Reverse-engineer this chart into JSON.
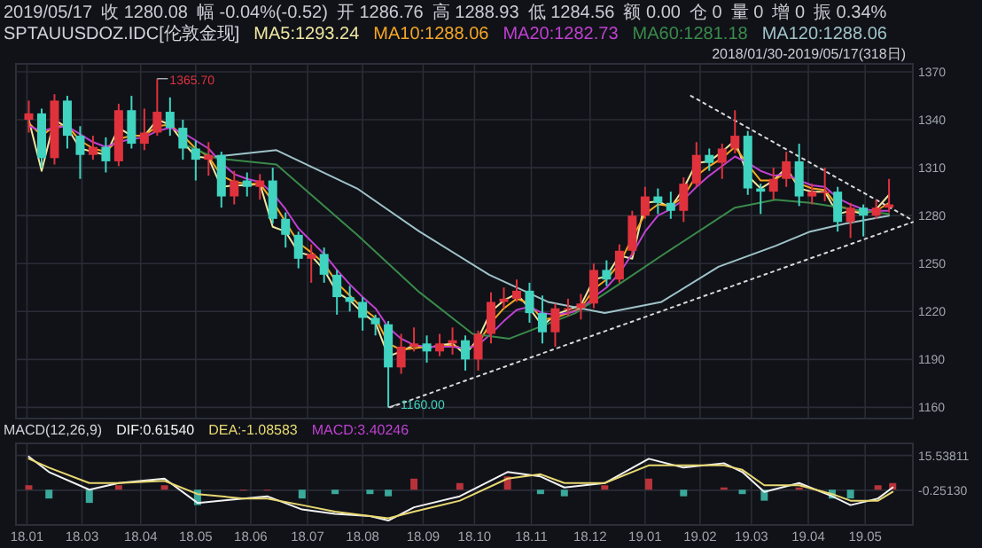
{
  "chart_data": [
    {
      "type": "candlestick",
      "title": "SPTAUUSDOZ.IDC[伦敦金现]",
      "subtitle": "2018/01/30-2019/05/17(318日)",
      "annotations": [
        "2019/05/17",
        "收 1280.08",
        "幅 -0.04%(-0.52)",
        "开 1286.76",
        "高 1288.93",
        "低 1284.56",
        "额 0.00",
        "仓 0",
        "量 0",
        "增 0",
        "振 0.34%",
        {
          "text": "1365.70",
          "x": "2018-04-11",
          "y": 1365.7
        },
        {
          "text": "1160.00",
          "x": "2018-08-15",
          "y": 1160
        }
      ],
      "x": [
        "2018-01-31",
        "2018-02-07",
        "2018-02-14",
        "2018-02-21",
        "2018-02-28",
        "2018-03-07",
        "2018-03-14",
        "2018-03-21",
        "2018-03-28",
        "2018-04-04",
        "2018-04-11",
        "2018-04-18",
        "2018-04-25",
        "2018-05-02",
        "2018-05-09",
        "2018-05-16",
        "2018-05-23",
        "2018-05-30",
        "2018-06-06",
        "2018-06-13",
        "2018-06-20",
        "2018-06-27",
        "2018-07-04",
        "2018-07-11",
        "2018-07-18",
        "2018-07-25",
        "2018-08-01",
        "2018-08-08",
        "2018-08-15",
        "2018-08-22",
        "2018-08-29",
        "2018-09-05",
        "2018-09-12",
        "2018-09-19",
        "2018-09-26",
        "2018-10-03",
        "2018-10-10",
        "2018-10-17",
        "2018-10-24",
        "2018-10-31",
        "2018-11-07",
        "2018-11-14",
        "2018-11-21",
        "2018-11-28",
        "2018-12-05",
        "2018-12-12",
        "2018-12-19",
        "2018-12-26",
        "2019-01-02",
        "2019-01-09",
        "2019-01-16",
        "2019-01-23",
        "2019-01-30",
        "2019-02-06",
        "2019-02-13",
        "2019-02-20",
        "2019-02-27",
        "2019-03-06",
        "2019-03-13",
        "2019-03-20",
        "2019-03-27",
        "2019-04-03",
        "2019-04-10",
        "2019-04-17",
        "2019-04-24",
        "2019-05-01",
        "2019-05-08",
        "2019-05-15"
      ],
      "ohlc": [
        [
          1340,
          1352,
          1332,
          1344
        ],
        [
          1344,
          1347,
          1310,
          1316
        ],
        [
          1316,
          1356,
          1312,
          1352
        ],
        [
          1352,
          1355,
          1322,
          1330
        ],
        [
          1330,
          1336,
          1303,
          1318
        ],
        [
          1318,
          1330,
          1315,
          1323
        ],
        [
          1323,
          1329,
          1307,
          1314
        ],
        [
          1314,
          1350,
          1311,
          1346
        ],
        [
          1346,
          1355,
          1322,
          1325
        ],
        [
          1325,
          1347,
          1321,
          1332
        ],
        [
          1332,
          1365.7,
          1330,
          1345
        ],
        [
          1345,
          1354,
          1330,
          1335
        ],
        [
          1335,
          1340,
          1315,
          1322
        ],
        [
          1322,
          1327,
          1302,
          1315
        ],
        [
          1315,
          1326,
          1305,
          1318
        ],
        [
          1318,
          1320,
          1285,
          1292
        ],
        [
          1292,
          1308,
          1287,
          1302
        ],
        [
          1302,
          1307,
          1292,
          1298
        ],
        [
          1298,
          1306,
          1290,
          1302
        ],
        [
          1302,
          1310,
          1275,
          1278
        ],
        [
          1278,
          1282,
          1260,
          1268
        ],
        [
          1268,
          1270,
          1247,
          1253
        ],
        [
          1253,
          1262,
          1238,
          1256
        ],
        [
          1256,
          1260,
          1238,
          1243
        ],
        [
          1243,
          1246,
          1218,
          1229
        ],
        [
          1229,
          1236,
          1220,
          1226
        ],
        [
          1226,
          1229,
          1208,
          1216
        ],
        [
          1216,
          1218,
          1205,
          1212
        ],
        [
          1212,
          1214,
          1160,
          1185
        ],
        [
          1185,
          1206,
          1181,
          1198
        ],
        [
          1198,
          1210,
          1195,
          1200
        ],
        [
          1200,
          1205,
          1188,
          1195
        ],
        [
          1195,
          1206,
          1192,
          1200
        ],
        [
          1200,
          1210,
          1193,
          1202
        ],
        [
          1202,
          1205,
          1183,
          1190
        ],
        [
          1190,
          1208,
          1183,
          1206
        ],
        [
          1206,
          1232,
          1200,
          1226
        ],
        [
          1226,
          1235,
          1222,
          1228
        ],
        [
          1228,
          1240,
          1226,
          1233
        ],
        [
          1233,
          1238,
          1213,
          1219
        ],
        [
          1219,
          1230,
          1200,
          1207
        ],
        [
          1207,
          1225,
          1198,
          1222
        ],
        [
          1222,
          1228,
          1217,
          1222
        ],
        [
          1222,
          1231,
          1215,
          1225
        ],
        [
          1225,
          1250,
          1222,
          1246
        ],
        [
          1246,
          1252,
          1236,
          1240
        ],
        [
          1240,
          1262,
          1238,
          1258
        ],
        [
          1258,
          1283,
          1255,
          1280
        ],
        [
          1280,
          1298,
          1278,
          1292
        ],
        [
          1292,
          1297,
          1281,
          1288
        ],
        [
          1288,
          1295,
          1278,
          1283
        ],
        [
          1283,
          1304,
          1276,
          1300
        ],
        [
          1300,
          1326,
          1298,
          1318
        ],
        [
          1318,
          1322,
          1308,
          1313
        ],
        [
          1313,
          1325,
          1303,
          1322
        ],
        [
          1322,
          1346,
          1319,
          1330
        ],
        [
          1330,
          1333,
          1293,
          1297
        ],
        [
          1297,
          1300,
          1281,
          1295
        ],
        [
          1295,
          1310,
          1290,
          1303
        ],
        [
          1303,
          1320,
          1298,
          1314
        ],
        [
          1314,
          1325,
          1286,
          1292
        ],
        [
          1292,
          1300,
          1287,
          1295
        ],
        [
          1295,
          1310,
          1289,
          1295
        ],
        [
          1295,
          1298,
          1270,
          1276
        ],
        [
          1276,
          1288,
          1266,
          1285
        ],
        [
          1285,
          1287,
          1267,
          1280
        ],
        [
          1280,
          1290,
          1278,
          1285
        ],
        [
          1285,
          1303,
          1282,
          1287
        ]
      ],
      "series": [
        {
          "name": "MA5:1293.24",
          "type": "line",
          "color": "#f0e6a0",
          "values": [
            1340,
            1308,
            1340,
            1335,
            1322,
            1320,
            1318,
            1335,
            1330,
            1330,
            1340,
            1337,
            1326,
            1317,
            1316,
            1298,
            1299,
            1299,
            1300,
            1273,
            1270,
            1257,
            1255,
            1246,
            1232,
            1227,
            1219,
            1213,
            1192,
            1195,
            1199,
            1197,
            1199,
            1200,
            1193,
            1203,
            1220,
            1227,
            1231,
            1222,
            1211,
            1218,
            1221,
            1224,
            1240,
            1242,
            1255,
            1253,
            1288,
            1289,
            1285,
            1297,
            1313,
            1314,
            1320,
            1327,
            1305,
            1297,
            1302,
            1310,
            1297,
            1295,
            1295,
            1281,
            1283,
            1281,
            1284,
            1293
          ]
        },
        {
          "name": "MA10:1288.06",
          "type": "line",
          "color": "#f5a623",
          "values": [
            1338,
            1330,
            1336,
            1336,
            1327,
            1322,
            1320,
            1328,
            1330,
            1330,
            1336,
            1337,
            1330,
            1322,
            1317,
            1305,
            1301,
            1300,
            1300,
            1289,
            1276,
            1263,
            1257,
            1250,
            1238,
            1230,
            1222,
            1216,
            1200,
            1196,
            1197,
            1198,
            1198,
            1199,
            1196,
            1200,
            1213,
            1222,
            1228,
            1225,
            1215,
            1216,
            1219,
            1222,
            1234,
            1240,
            1250,
            1266,
            1281,
            1287,
            1286,
            1292,
            1305,
            1311,
            1316,
            1323,
            1312,
            1302,
            1302,
            1307,
            1300,
            1297,
            1296,
            1286,
            1284,
            1282,
            1283,
            1288
          ]
        },
        {
          "name": "MA20:1282.73",
          "type": "line",
          "color": "#c040d0",
          "values": [
            1336,
            1333,
            1335,
            1336,
            1331,
            1326,
            1323,
            1326,
            1328,
            1329,
            1333,
            1335,
            1332,
            1327,
            1322,
            1313,
            1306,
            1303,
            1301,
            1294,
            1284,
            1272,
            1264,
            1256,
            1246,
            1237,
            1229,
            1222,
            1210,
            1203,
            1199,
            1198,
            1198,
            1198,
            1197,
            1199,
            1206,
            1214,
            1221,
            1223,
            1219,
            1218,
            1219,
            1221,
            1229,
            1235,
            1244,
            1256,
            1270,
            1280,
            1284,
            1290,
            1298,
            1305,
            1311,
            1317,
            1313,
            1308,
            1305,
            1306,
            1302,
            1299,
            1298,
            1291,
            1287,
            1284,
            1283,
            1283
          ]
        },
        {
          "name": "MA60:1281.18",
          "type": "line",
          "color": "#3a8a4a",
          "x": [
            "2018-04-25",
            "2018-05-13",
            "2018-06-15",
            "2018-07-29",
            "2018-09-01",
            "2018-09-30",
            "2018-10-20",
            "2018-11-25",
            "2018-12-20",
            "2019-01-11",
            "2019-02-20",
            "2019-03-14",
            "2019-04-02",
            "2019-04-30",
            "2019-05-15"
          ],
          "values": [
            1325,
            1316,
            1312,
            1268,
            1232,
            1206,
            1203,
            1219,
            1238,
            1255,
            1285,
            1290,
            1288,
            1283,
            1281
          ]
        },
        {
          "name": "MA120:1288.06",
          "type": "line",
          "color": "#9fc3c8",
          "x": [
            "2018-05-13",
            "2018-06-15",
            "2018-07-29",
            "2018-09-01",
            "2018-10-09",
            "2018-11-10",
            "2018-12-11",
            "2019-01-11",
            "2019-02-11",
            "2019-03-14",
            "2019-04-02",
            "2019-04-21",
            "2019-05-15"
          ],
          "values": [
            1317,
            1321,
            1297,
            1270,
            1243,
            1226,
            1219,
            1226,
            1248,
            1261,
            1270,
            1275,
            1280
          ]
        },
        {
          "type": "line",
          "color": "#d8d8d8",
          "line_style": "dotted",
          "x": [
            "2018-08-16",
            "2019-05-28"
          ],
          "values": [
            1160,
            1276
          ]
        },
        {
          "type": "line",
          "color": "#d8d8d8",
          "line_style": "dotted",
          "x": [
            "2019-01-27",
            "2019-05-28"
          ],
          "values": [
            1355,
            1277
          ]
        }
      ],
      "xlim": [
        "2018-01-24",
        "2019-05-28"
      ],
      "xticks": [
        "2018-01-30",
        "2018-03-01",
        "2018-04-02",
        "2018-05-02",
        "2018-06-01",
        "2018-07-02",
        "2018-08-01",
        "2018-09-03",
        "2018-10-01",
        "2018-11-01",
        "2018-12-03",
        "2019-01-02",
        "2019-02-01",
        "2019-03-01",
        "2019-04-01",
        "2019-05-02"
      ],
      "ylim": [
        1153,
        1375
      ],
      "yticks": [
        1160,
        1190,
        1220,
        1250,
        1280,
        1310,
        1340,
        1370
      ],
      "tick_labels": "y",
      "grid": true,
      "legend": "top"
    },
    {
      "type": "line",
      "title": "MACD(12,26,9)",
      "annotations": [
        "MACD:3.40246"
      ],
      "x": [
        "2018-01-31",
        "2018-02-11",
        "2018-03-05",
        "2018-03-21",
        "2018-04-15",
        "2018-05-03",
        "2018-05-28",
        "2018-06-10",
        "2018-06-29",
        "2018-07-17",
        "2018-08-05",
        "2018-08-15",
        "2018-08-29",
        "2018-09-23",
        "2018-10-19",
        "2018-11-06",
        "2018-11-19",
        "2018-12-11",
        "2019-01-04",
        "2019-01-23",
        "2019-02-14",
        "2019-02-24",
        "2019-03-08",
        "2019-03-27",
        "2019-04-14",
        "2019-04-24",
        "2019-05-09",
        "2019-05-17"
      ],
      "series": [
        {
          "type": "bar",
          "colors": [
            "#b8323a",
            "#3aa89a",
            "#3aa89a",
            "#b8323a",
            "#b8323a",
            "#3aa89a",
            "#b8323a",
            "#b8323a",
            "#3aa89a",
            "#3aa89a",
            "#3aa89a",
            "#3aa89a",
            "#b8323a",
            "#b8323a",
            "#b8323a",
            "#3aa89a",
            "#3aa89a",
            "#b8323a",
            "#b8323a",
            "#3aa89a",
            "#b8323a",
            "#3aa89a",
            "#3aa89a",
            "#b8323a",
            "#3aa89a",
            "#3aa89a",
            "#b8323a",
            "#b8323a"
          ],
          "values": [
            2,
            -4,
            -6,
            2,
            2,
            -7,
            0,
            0,
            -4,
            -2,
            -2,
            -3,
            5,
            3,
            6,
            -2,
            -3,
            2,
            5,
            -3,
            1,
            -2,
            -5,
            1,
            -4,
            -4,
            2,
            3
          ]
        },
        {
          "name": "DIF:0.61540",
          "color": "#f2f2f2",
          "values": [
            15,
            8,
            0,
            3,
            5,
            -6,
            -4,
            -3,
            -9,
            -11,
            -12,
            -14,
            -8,
            -3,
            8,
            6,
            1,
            3,
            14,
            10,
            12,
            8,
            -1,
            3,
            -3,
            -7,
            -4,
            1
          ]
        },
        {
          "name": "DEA:-1.08583",
          "color": "#e8d870",
          "values": [
            14,
            10,
            3,
            3,
            4,
            -2,
            -4,
            -4,
            -7,
            -10,
            -12,
            -13,
            -10,
            -5,
            5,
            7,
            3,
            3,
            11,
            11,
            11,
            9,
            2,
            2,
            -2,
            -5,
            -5,
            -1
          ]
        }
      ],
      "xlim": [
        "2018-01-24",
        "2019-05-28"
      ],
      "xticks": [
        {
          "value": "2018-01-30",
          "label": "18.01"
        },
        {
          "value": "2018-03-01",
          "label": "18.03"
        },
        {
          "value": "2018-04-02",
          "label": "18.04"
        },
        {
          "value": "2018-05-02",
          "label": "18.05"
        },
        {
          "value": "2018-06-01",
          "label": "18.06"
        },
        {
          "value": "2018-07-02",
          "label": "18.07"
        },
        {
          "value": "2018-08-01",
          "label": "18.08"
        },
        {
          "value": "2018-09-03",
          "label": "18.09"
        },
        {
          "value": "2018-10-01",
          "label": "18.10"
        },
        {
          "value": "2018-11-01",
          "label": "18.11"
        },
        {
          "value": "2018-12-03",
          "label": "18.12"
        },
        {
          "value": "2019-01-02",
          "label": "19.01"
        },
        {
          "value": "2019-02-01",
          "label": "19.02"
        },
        {
          "value": "2019-03-01",
          "label": "19.03"
        },
        {
          "value": "2019-04-01",
          "label": "19.04"
        },
        {
          "value": "2019-05-02",
          "label": "19.05"
        }
      ],
      "ylim": [
        -16,
        21
      ],
      "yticks": [
        {
          "value": 15.53811,
          "label": "15.53811"
        },
        {
          "value": -0.2513,
          "label": "-0.25130"
        }
      ],
      "grid": true,
      "legend": "top"
    }
  ]
}
